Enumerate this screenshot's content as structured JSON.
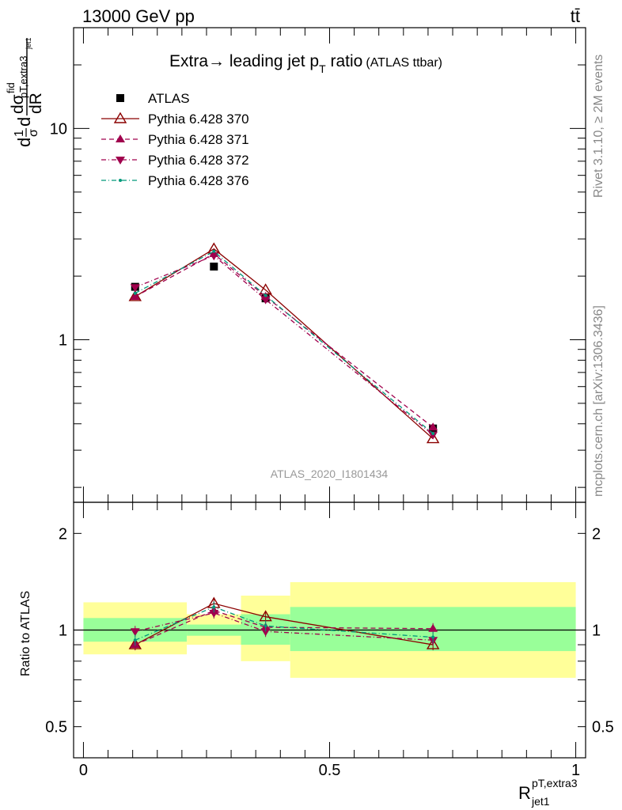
{
  "header": {
    "left": "13000 GeV pp",
    "right": "tt̄"
  },
  "side_text": {
    "upper": "Rivet 3.1.10, ≥ 2M events",
    "lower": "mcplots.cern.ch [arXiv:1306.3436]"
  },
  "watermark": "ATLAS_2020_I1801434",
  "chart_data": [
    {
      "type": "line",
      "panel": "main",
      "title": {
        "main": "Extra→ leading jet p",
        "sub": "T",
        "suffix": " ratio",
        "tag": "(ATLAS ttbar)"
      },
      "ylabel": {
        "d1": "d",
        "frac_num": "1",
        "frac_den": "σ",
        "d2": "d",
        "num": "dσ",
        "num_sup": "fid",
        "num_sub": "pT,extra3",
        "num_subsub": "jet1",
        "den": "dR"
      },
      "y_scale": "log",
      "xlim": [
        -0.02,
        1.02
      ],
      "ylim": [
        0.17,
        30
      ],
      "y_tick_labels": [
        {
          "value": 1,
          "label": "1"
        },
        {
          "value": 10,
          "label": "10"
        }
      ],
      "legend_position": "top-left",
      "series": [
        {
          "name": "ATLAS",
          "marker": "square",
          "color": "#000000",
          "points": [
            {
              "x": 0.105,
              "y": 1.78
            },
            {
              "x": 0.265,
              "y": 2.22
            },
            {
              "x": 0.37,
              "y": 1.57
            },
            {
              "x": 0.71,
              "y": 0.38
            }
          ]
        },
        {
          "name": "Pythia 6.428 370",
          "marker": "triangle-up-open",
          "color": "#8b0000",
          "dash": "solid",
          "points": [
            {
              "x": 0.105,
              "y": 1.6
            },
            {
              "x": 0.265,
              "y": 2.69
            },
            {
              "x": 0.37,
              "y": 1.72
            },
            {
              "x": 0.71,
              "y": 0.34
            }
          ]
        },
        {
          "name": "Pythia 6.428 371",
          "marker": "triangle-up",
          "color": "#a0004d",
          "dash": "dashed",
          "points": [
            {
              "x": 0.105,
              "y": 1.6
            },
            {
              "x": 0.265,
              "y": 2.55
            },
            {
              "x": 0.37,
              "y": 1.6
            },
            {
              "x": 0.71,
              "y": 0.385
            }
          ]
        },
        {
          "name": "Pythia 6.428 372",
          "marker": "triangle-down",
          "color": "#a0004d",
          "dash": "dashdot",
          "points": [
            {
              "x": 0.105,
              "y": 1.77
            },
            {
              "x": 0.265,
              "y": 2.5
            },
            {
              "x": 0.37,
              "y": 1.55
            },
            {
              "x": 0.71,
              "y": 0.355
            }
          ]
        },
        {
          "name": "Pythia 6.428 376",
          "marker": "dot",
          "color": "#00997a",
          "dash": "dashdot",
          "points": [
            {
              "x": 0.105,
              "y": 1.66
            },
            {
              "x": 0.265,
              "y": 2.62
            },
            {
              "x": 0.37,
              "y": 1.62
            },
            {
              "x": 0.71,
              "y": 0.36
            }
          ]
        }
      ]
    },
    {
      "type": "line",
      "panel": "ratio",
      "ylabel": "Ratio to ATLAS",
      "xlabel": {
        "main": "R",
        "sub": "jet1",
        "sup": "pT,extra3"
      },
      "y_scale": "log",
      "xlim": [
        -0.02,
        1.02
      ],
      "ylim": [
        0.4,
        2.5
      ],
      "x_tick_labels": [
        {
          "value": 0,
          "label": "0"
        },
        {
          "value": 0.5,
          "label": "0.5"
        },
        {
          "value": 1,
          "label": "1"
        }
      ],
      "y_tick_labels": [
        {
          "value": 0.5,
          "label": "0.5"
        },
        {
          "value": 1,
          "label": "1"
        },
        {
          "value": 2,
          "label": "2"
        }
      ],
      "bands": [
        {
          "x0": 0.0,
          "x1": 0.21,
          "stat_lo": 0.92,
          "stat_hi": 1.09,
          "tot_lo": 0.84,
          "tot_hi": 1.22
        },
        {
          "x0": 0.21,
          "x1": 0.32,
          "stat_lo": 0.96,
          "stat_hi": 1.04,
          "tot_lo": 0.9,
          "tot_hi": 1.12
        },
        {
          "x0": 0.32,
          "x1": 0.42,
          "stat_lo": 0.9,
          "stat_hi": 1.12,
          "tot_lo": 0.8,
          "tot_hi": 1.28
        },
        {
          "x0": 0.42,
          "x1": 1.0,
          "stat_lo": 0.86,
          "stat_hi": 1.18,
          "tot_lo": 0.71,
          "tot_hi": 1.41
        }
      ],
      "colors": {
        "stat": "#99ff99",
        "total": "#ffff99"
      },
      "series": [
        {
          "name": "Pythia 6.428 370",
          "points": [
            {
              "x": 0.105,
              "y": 0.9
            },
            {
              "x": 0.265,
              "y": 1.21
            },
            {
              "x": 0.37,
              "y": 1.1
            },
            {
              "x": 0.71,
              "y": 0.9
            }
          ]
        },
        {
          "name": "Pythia 6.428 371",
          "points": [
            {
              "x": 0.105,
              "y": 0.9
            },
            {
              "x": 0.265,
              "y": 1.15
            },
            {
              "x": 0.37,
              "y": 1.02
            },
            {
              "x": 0.71,
              "y": 1.01
            }
          ]
        },
        {
          "name": "Pythia 6.428 372",
          "points": [
            {
              "x": 0.105,
              "y": 0.99
            },
            {
              "x": 0.265,
              "y": 1.13
            },
            {
              "x": 0.37,
              "y": 0.99
            },
            {
              "x": 0.71,
              "y": 0.93
            }
          ]
        },
        {
          "name": "Pythia 6.428 376",
          "points": [
            {
              "x": 0.105,
              "y": 0.93
            },
            {
              "x": 0.265,
              "y": 1.18
            },
            {
              "x": 0.37,
              "y": 1.03
            },
            {
              "x": 0.71,
              "y": 0.95
            }
          ]
        }
      ]
    }
  ]
}
